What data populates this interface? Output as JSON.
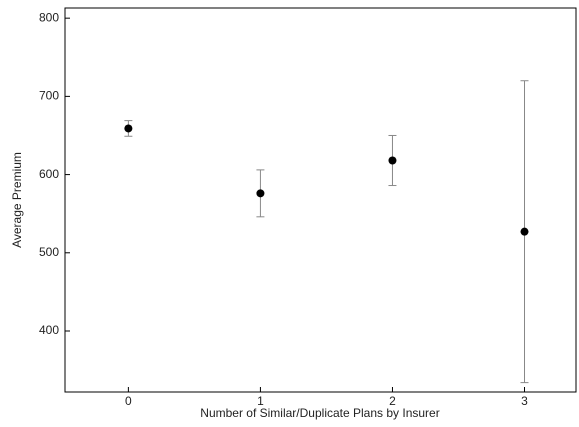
{
  "chart_data": {
    "type": "errorbar",
    "xlabel": "Number of Similar/Duplicate Plans by Insurer",
    "ylabel": "Average Premium",
    "x": [
      0,
      1,
      2,
      3
    ],
    "values": [
      659,
      576,
      618,
      527
    ],
    "errors": [
      10,
      30,
      32,
      193
    ],
    "color": "#000000",
    "error_color": "#888888",
    "xlim": [
      -0.48,
      3.39
    ],
    "ylim": [
      322,
      813
    ],
    "xticks": [
      0,
      1,
      2,
      3
    ],
    "yticks": [
      400,
      500,
      600,
      700,
      800
    ]
  }
}
